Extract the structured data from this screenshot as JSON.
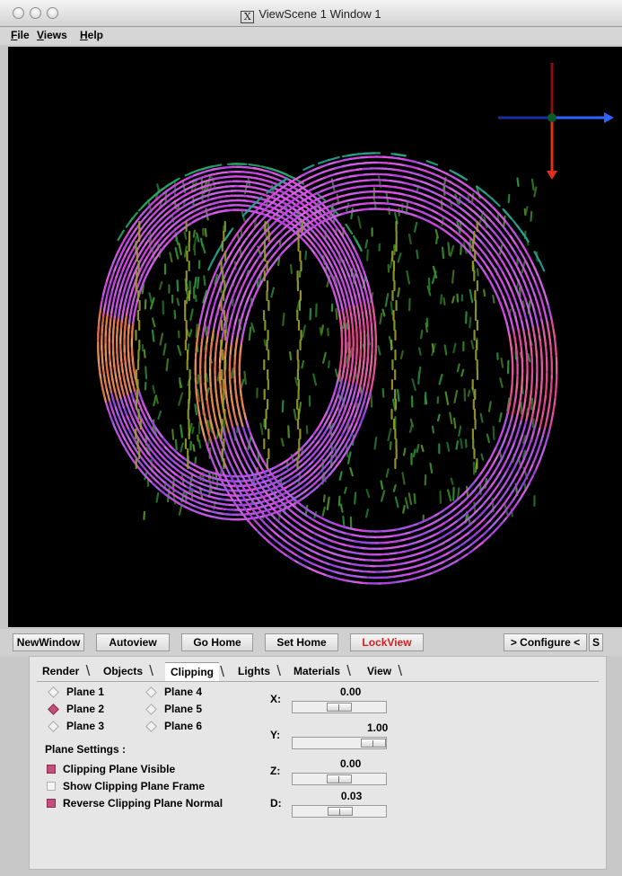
{
  "window": {
    "title": "ViewScene 1 Window 1",
    "x_glyph": "X"
  },
  "menubar": {
    "items": [
      "File",
      "Views",
      "Help"
    ]
  },
  "toolbar": {
    "new_window": "NewWindow",
    "autoview": "Autoview",
    "go_home": "Go Home",
    "set_home": "Set Home",
    "lock_view": "LockView",
    "configure": "> Configure <",
    "s_button": "S"
  },
  "tabs": [
    "Render",
    "Objects",
    "Clipping",
    "Lights",
    "Materials",
    "View"
  ],
  "active_tab": "Clipping",
  "planes": [
    {
      "label": "Plane 1",
      "selected": false
    },
    {
      "label": "Plane 2",
      "selected": true
    },
    {
      "label": "Plane 3",
      "selected": false
    },
    {
      "label": "Plane 4",
      "selected": false
    },
    {
      "label": "Plane 5",
      "selected": false
    },
    {
      "label": "Plane 6",
      "selected": false
    }
  ],
  "plane_settings": {
    "heading": "Plane Settings :",
    "options": [
      {
        "label": "Clipping Plane Visible",
        "checked": true
      },
      {
        "label": "Show Clipping Plane Frame",
        "checked": false
      },
      {
        "label": "Reverse Clipping Plane Normal",
        "checked": true
      }
    ]
  },
  "sliders": [
    {
      "label": "X:",
      "value": "0.00",
      "min": -1,
      "max": 1,
      "level": 0.0
    },
    {
      "label": "Y:",
      "value": "1.00",
      "min": -1,
      "max": 1,
      "level": 1.0
    },
    {
      "label": "Z:",
      "value": "0.00",
      "min": -1,
      "max": 1,
      "level": 0.0
    },
    {
      "label": "D:",
      "value": "0.03",
      "min": -1,
      "max": 1,
      "level": 0.03
    }
  ],
  "colors": {
    "accent": "#c2507a",
    "lock_text": "#d02020",
    "viewport_bg": "#000000"
  }
}
